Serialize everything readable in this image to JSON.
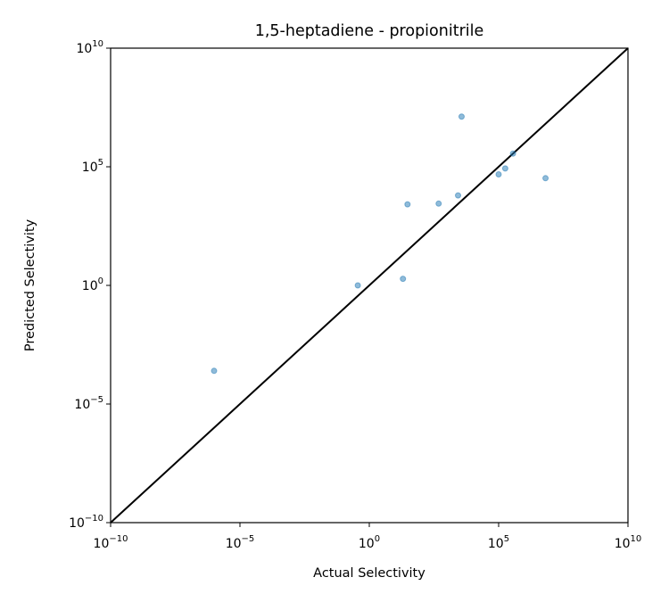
{
  "chart_data": {
    "type": "scatter",
    "title": "1,5-heptadiene - propionitrile",
    "xlabel": "Actual Selectivity",
    "ylabel": "Predicted Selectivity",
    "x_scale": "log",
    "y_scale": "log",
    "xlim": [
      1e-10,
      10000000000.0
    ],
    "ylim": [
      1e-10,
      10000000000.0
    ],
    "x_ticks": [
      {
        "base": "10",
        "exp": "−10",
        "value": 1e-10
      },
      {
        "base": "10",
        "exp": "−5",
        "value": 1e-05
      },
      {
        "base": "10",
        "exp": "0",
        "value": 1
      },
      {
        "base": "10",
        "exp": "5",
        "value": 100000.0
      },
      {
        "base": "10",
        "exp": "10",
        "value": 10000000000.0
      }
    ],
    "y_ticks": [
      {
        "base": "10",
        "exp": "−10",
        "value": 1e-10
      },
      {
        "base": "10",
        "exp": "−5",
        "value": 1e-05
      },
      {
        "base": "10",
        "exp": "0",
        "value": 1
      },
      {
        "base": "10",
        "exp": "5",
        "value": 100000.0
      },
      {
        "base": "10",
        "exp": "10",
        "value": 10000000000.0
      }
    ],
    "grid": false,
    "reference_line": {
      "type": "y=x",
      "color": "#000000"
    },
    "marker_color": "#1f77b4",
    "points": [
      {
        "x": 1e-06,
        "y": 0.00025
      },
      {
        "x": 0.36,
        "y": 1.0
      },
      {
        "x": 20,
        "y": 1.9
      },
      {
        "x": 30,
        "y": 2600
      },
      {
        "x": 480,
        "y": 2800
      },
      {
        "x": 2700,
        "y": 6200
      },
      {
        "x": 3700,
        "y": 13000000.0
      },
      {
        "x": 100000.0,
        "y": 48000.0
      },
      {
        "x": 180000.0,
        "y": 85000.0
      },
      {
        "x": 360000.0,
        "y": 360000.0
      },
      {
        "x": 6500000.0,
        "y": 33000.0
      }
    ]
  }
}
